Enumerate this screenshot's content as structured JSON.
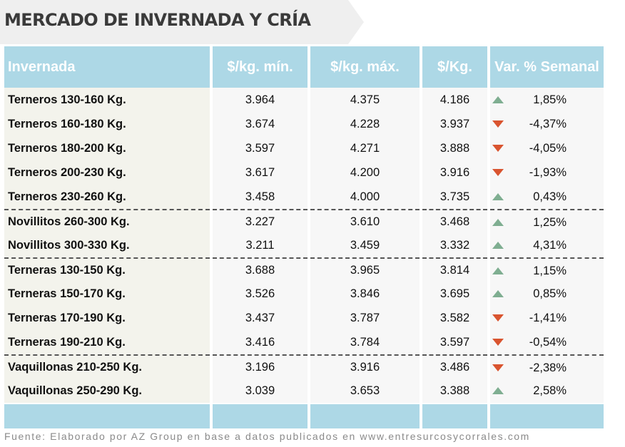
{
  "title": "MERCADO DE INVERNADA Y CRÍA",
  "headers": [
    "Invernada",
    "$/kg. mín.",
    "$/kg. máx.",
    "$/Kg.",
    "Var. % Semanal"
  ],
  "colors": {
    "header": "#add8e6",
    "up": "#7fae91",
    "down": "#d9542f"
  },
  "rows": [
    {
      "name": "Terneros 130-160 Kg.",
      "min": "3.964",
      "max": "4.375",
      "avg": "4.186",
      "trend": "up",
      "var": "1,85%"
    },
    {
      "name": "Terneros 160-180 Kg.",
      "min": "3.674",
      "max": "4.228",
      "avg": "3.937",
      "trend": "down",
      "var": "-4,37%"
    },
    {
      "name": "Terneros 180-200 Kg.",
      "min": "3.597",
      "max": "4.271",
      "avg": "3.888",
      "trend": "down",
      "var": "-4,05%"
    },
    {
      "name": "Terneros 200-230 Kg.",
      "min": "3.617",
      "max": "4.200",
      "avg": "3.916",
      "trend": "down",
      "var": "-1,93%"
    },
    {
      "name": "Terneros 230-260 Kg.",
      "min": "3.458",
      "max": "4.000",
      "avg": "3.735",
      "trend": "up",
      "var": "0,43%"
    },
    {
      "name": "Novillitos 260-300 Kg.",
      "min": "3.227",
      "max": "3.610",
      "avg": "3.468",
      "trend": "up",
      "var": "1,25%"
    },
    {
      "name": "Novillitos 300-330 Kg.",
      "min": "3.211",
      "max": "3.459",
      "avg": "3.332",
      "trend": "up",
      "var": "4,31%"
    },
    {
      "name": "Terneras 130-150 Kg.",
      "min": "3.688",
      "max": "3.965",
      "avg": "3.814",
      "trend": "up",
      "var": "1,15%"
    },
    {
      "name": "Terneras 150-170 Kg.",
      "min": "3.526",
      "max": "3.846",
      "avg": "3.695",
      "trend": "up",
      "var": "0,85%"
    },
    {
      "name": "Terneras 170-190 Kg.",
      "min": "3.437",
      "max": "3.787",
      "avg": "3.582",
      "trend": "down",
      "var": "-1,41%"
    },
    {
      "name": "Terneras 190-210 Kg.",
      "min": "3.416",
      "max": "3.784",
      "avg": "3.597",
      "trend": "down",
      "var": "-0,54%"
    },
    {
      "name": "Vaquillonas 210-250 Kg.",
      "min": "3.196",
      "max": "3.916",
      "avg": "3.486",
      "trend": "down",
      "var": "-2,38%"
    },
    {
      "name": "Vaquillonas 250-290 Kg.",
      "min": "3.039",
      "max": "3.653",
      "avg": "3.388",
      "trend": "up",
      "var": "2,58%"
    }
  ],
  "group_breaks_before": [
    5,
    7,
    11
  ],
  "source": "Fuente: Elaborado por AZ Group en base a datos publicados en www.entresurcosycorrales.com"
}
